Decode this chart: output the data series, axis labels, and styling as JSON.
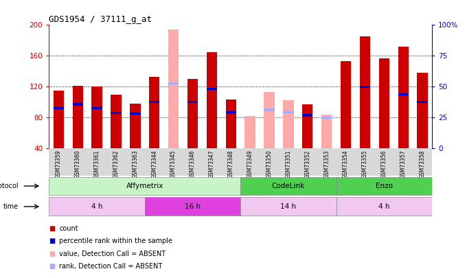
{
  "title": "GDS1954 / 37111_g_at",
  "samples": [
    "GSM73359",
    "GSM73360",
    "GSM73361",
    "GSM73362",
    "GSM73363",
    "GSM73344",
    "GSM73345",
    "GSM73346",
    "GSM73347",
    "GSM73348",
    "GSM73349",
    "GSM73350",
    "GSM73351",
    "GSM73352",
    "GSM73353",
    "GSM73354",
    "GSM73355",
    "GSM73356",
    "GSM73357",
    "GSM73358"
  ],
  "count_values": [
    115,
    121,
    120,
    110,
    98,
    133,
    null,
    130,
    165,
    103,
    null,
    null,
    null,
    97,
    null,
    153,
    185,
    157,
    172,
    138
  ],
  "rank_values": [
    92,
    97,
    92,
    86,
    85,
    100,
    null,
    100,
    117,
    87,
    null,
    null,
    null,
    83,
    null,
    null,
    120,
    null,
    110,
    100
  ],
  "absent_count_values": [
    null,
    null,
    null,
    null,
    null,
    null,
    194,
    null,
    null,
    null,
    82,
    113,
    102,
    null,
    84,
    null,
    null,
    null,
    null,
    null
  ],
  "absent_rank_values": [
    null,
    null,
    null,
    null,
    null,
    null,
    124,
    null,
    null,
    null,
    null,
    90,
    87,
    null,
    80,
    null,
    null,
    null,
    null,
    null
  ],
  "ylim": [
    40,
    200
  ],
  "yticks": [
    40,
    80,
    120,
    160,
    200
  ],
  "right_yticks": [
    0,
    25,
    50,
    75,
    100
  ],
  "protocol_groups": [
    {
      "label": "Affymetrix",
      "start": 0,
      "end": 9,
      "color": "#c8f5c8"
    },
    {
      "label": "CodeLink",
      "start": 10,
      "end": 14,
      "color": "#50d050"
    },
    {
      "label": "Enzo",
      "start": 15,
      "end": 19,
      "color": "#50d050"
    }
  ],
  "time_groups": [
    {
      "label": "4 h",
      "start": 0,
      "end": 4,
      "color": "#f0c8f0"
    },
    {
      "label": "16 h",
      "start": 5,
      "end": 9,
      "color": "#e040e0"
    },
    {
      "label": "14 h",
      "start": 10,
      "end": 14,
      "color": "#f0c8f0"
    },
    {
      "label": "4 h",
      "start": 15,
      "end": 19,
      "color": "#f0c8f0"
    }
  ],
  "bar_color_present": "#cc0000",
  "bar_color_absent": "#ffaaaa",
  "rank_color_present": "#0000cc",
  "rank_color_absent": "#aaaaff",
  "bar_width": 0.55,
  "background_color": "#ffffff",
  "right_axis_color": "#0000cc",
  "left_axis_color": "#cc0000",
  "legend_items": [
    {
      "label": "count",
      "color": "#cc0000"
    },
    {
      "label": "percentile rank within the sample",
      "color": "#0000cc"
    },
    {
      "label": "value, Detection Call = ABSENT",
      "color": "#ffaaaa"
    },
    {
      "label": "rank, Detection Call = ABSENT",
      "color": "#aaaaff"
    }
  ]
}
